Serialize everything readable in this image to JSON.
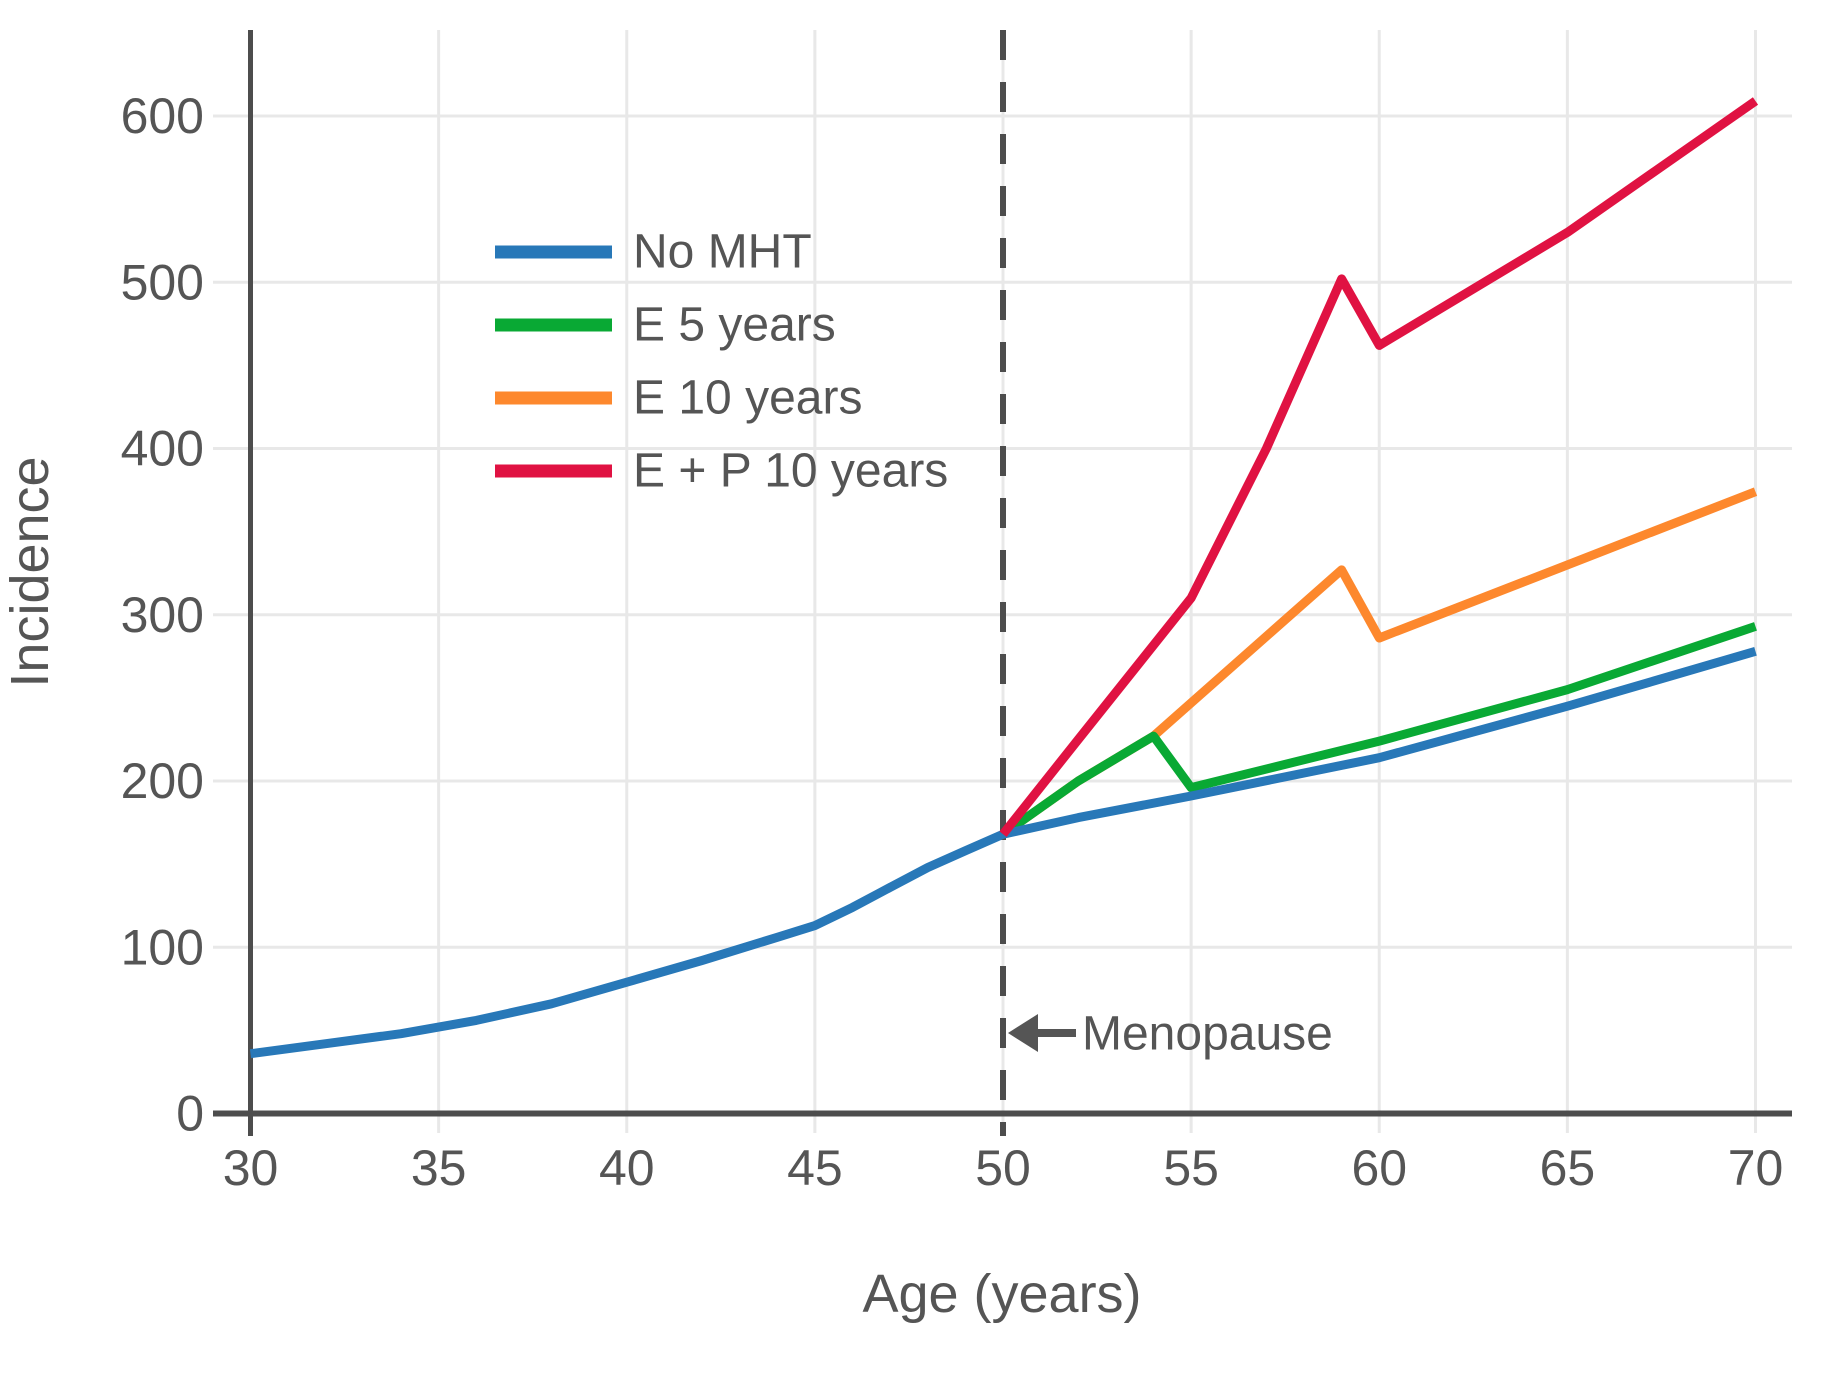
{
  "chart_data": {
    "type": "line",
    "title": "",
    "xlabel": "Age (years)",
    "ylabel": "Incidence",
    "x_ticks": [
      30,
      35,
      40,
      45,
      50,
      55,
      60,
      65,
      70
    ],
    "y_ticks": [
      0,
      100,
      200,
      300,
      400,
      500,
      600
    ],
    "xlim": [
      30,
      71
    ],
    "ylim": [
      0,
      652
    ],
    "grid": true,
    "legend_position": "upper-left-inside",
    "series": [
      {
        "name": "No MHT",
        "color": "#2878b8",
        "points": [
          [
            30,
            36
          ],
          [
            32,
            42
          ],
          [
            34,
            48
          ],
          [
            36,
            56
          ],
          [
            38,
            66
          ],
          [
            40,
            79
          ],
          [
            42,
            92
          ],
          [
            44,
            106
          ],
          [
            45,
            113
          ],
          [
            46,
            124
          ],
          [
            47,
            136
          ],
          [
            48,
            148
          ],
          [
            49,
            158
          ],
          [
            50,
            168
          ],
          [
            52,
            178
          ],
          [
            55,
            191
          ],
          [
            60,
            214
          ],
          [
            65,
            245
          ],
          [
            70,
            278
          ]
        ]
      },
      {
        "name": "E 5 years",
        "color": "#09a934",
        "points": [
          [
            50,
            168
          ],
          [
            52,
            200
          ],
          [
            54,
            227
          ],
          [
            55,
            196
          ],
          [
            60,
            224
          ],
          [
            65,
            255
          ],
          [
            70,
            293
          ]
        ]
      },
      {
        "name": "E 10 years",
        "color": "#fd882d",
        "points": [
          [
            50,
            168
          ],
          [
            52,
            200
          ],
          [
            54,
            227
          ],
          [
            59,
            327
          ],
          [
            60,
            286
          ],
          [
            65,
            330
          ],
          [
            70,
            374
          ]
        ]
      },
      {
        "name": "E + P 10 years",
        "color": "#e01242",
        "points": [
          [
            50,
            168
          ],
          [
            52,
            225
          ],
          [
            55,
            310
          ],
          [
            57,
            400
          ],
          [
            59,
            502
          ],
          [
            60,
            462
          ],
          [
            65,
            530
          ],
          [
            70,
            609
          ]
        ]
      }
    ],
    "vline": {
      "x": 50,
      "style": "dashed",
      "color": "#4d4d4d"
    },
    "annotation": {
      "text": "Menopause",
      "arrow": "left",
      "x": 50,
      "y": 46
    }
  },
  "style_colors": {
    "grid": "#e8e8e8",
    "axis": "#4d4d4d",
    "text": "#555555",
    "background": "#ffffff"
  }
}
